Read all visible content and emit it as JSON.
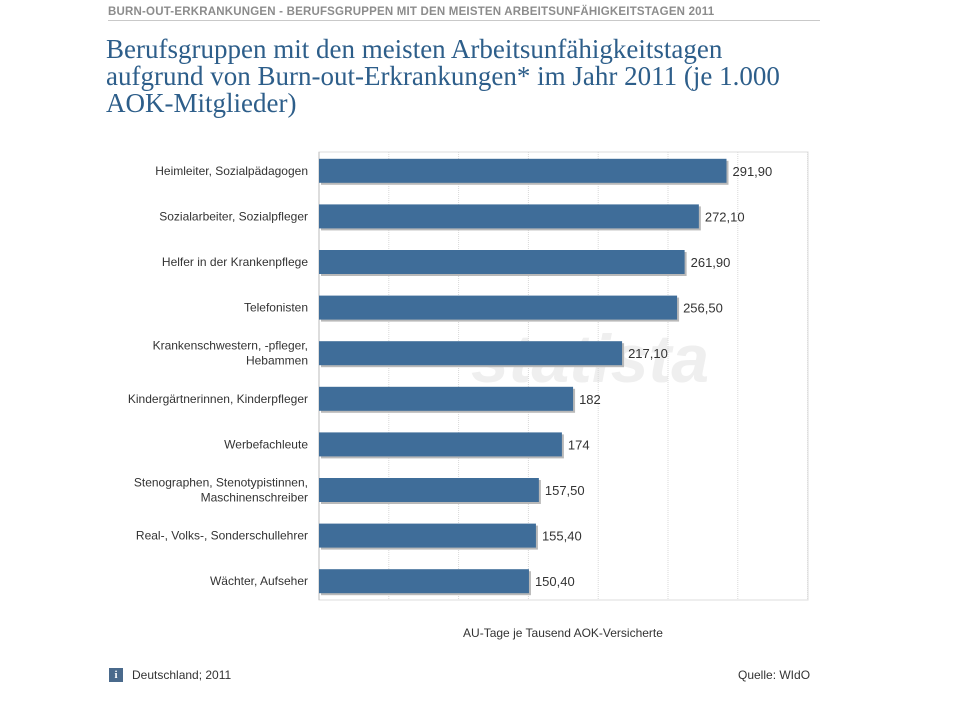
{
  "header": {
    "text": "BURN-OUT-ERKRANKUNGEN - BERUFSGRUPPEN MIT DEN MEISTEN ARBEITSUNFÄHIGKEITSTAGEN 2011"
  },
  "title": "Berufsgruppen mit den meisten Arbeitsunfähigkeitstagen aufgrund von Burn-out-Erkrankungen* im Jahr 2011 (je 1.000 AOK-Mitglieder)",
  "footer": {
    "info_icon_glyph": "i",
    "region": "Deutschland; 2011",
    "source": "Quelle: WIdO"
  },
  "colors": {
    "bar": "#3f6d99",
    "title": "#2d5e8a",
    "grid": "#d9d9d9"
  },
  "chart_data": {
    "type": "bar",
    "orientation": "horizontal",
    "categories": [
      [
        "Heimleiter, Sozialpädagogen"
      ],
      [
        "Sozialarbeiter, Sozialpfleger"
      ],
      [
        "Helfer in der Krankenpflege"
      ],
      [
        "Telefonisten"
      ],
      [
        "Krankenschwestern, -pfleger,",
        "Hebammen"
      ],
      [
        "Kindergärtnerinnen, Kinderpfleger"
      ],
      [
        "Werbefachleute"
      ],
      [
        "Stenographen, Stenotypistinnen,",
        "Maschinenschreiber"
      ],
      [
        "Real-, Volks-, Sonderschullehrer"
      ],
      [
        "Wächter, Aufseher"
      ]
    ],
    "values": [
      291.9,
      272.1,
      261.9,
      256.5,
      217.1,
      182,
      174,
      157.5,
      155.4,
      150.4
    ],
    "value_labels": [
      "291,90",
      "272,10",
      "261,90",
      "256,50",
      "217,10",
      "182",
      "174",
      "157,50",
      "155,40",
      "150,40"
    ],
    "xlabel": "AU-Tage je Tausend AOK-Versicherte",
    "xlim": [
      0,
      350
    ],
    "grid": true,
    "watermark": "statista"
  }
}
